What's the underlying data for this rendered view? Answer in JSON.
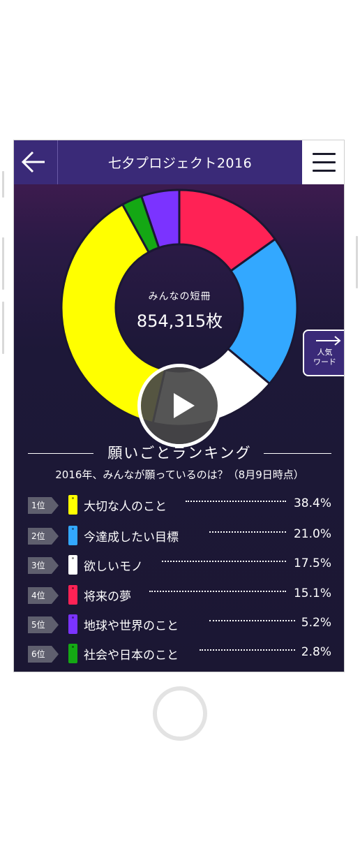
{
  "header": {
    "title": "七夕プロジェクト2016",
    "back_icon": "arrow-left-icon",
    "menu_icon": "hamburger-menu-icon"
  },
  "summary": {
    "label": "みんなの短冊",
    "total": "854,315枚"
  },
  "popular_words": {
    "label_line1": "人気",
    "label_line2": "ワード",
    "icon": "arrow-right-icon"
  },
  "ranking": {
    "title": "願いごとランキング",
    "subtitle": "2016年、みんなが願っているのは？（8月9日時点）",
    "items": [
      {
        "rank": "1位",
        "label": "大切な人のこと",
        "value": "38.4%",
        "color": "#ffff00"
      },
      {
        "rank": "2位",
        "label": "今達成したい目標",
        "value": "21.0%",
        "color": "#33a8ff"
      },
      {
        "rank": "3位",
        "label": "欲しいモノ",
        "value": "17.5%",
        "color": "#ffffff"
      },
      {
        "rank": "4位",
        "label": "将来の夢",
        "value": "15.1%",
        "color": "#ff2255"
      },
      {
        "rank": "5位",
        "label": "地球や世界のこと",
        "value": "5.2%",
        "color": "#7b33ff"
      },
      {
        "rank": "6位",
        "label": "社会や日本のこと",
        "value": "2.8%",
        "color": "#14a814"
      }
    ]
  },
  "chart_data": {
    "type": "pie",
    "categories": [
      "大切な人のこと",
      "今達成したい目標",
      "欲しいモノ",
      "将来の夢",
      "地球や世界のこと",
      "社会や日本のこと"
    ],
    "values": [
      38.4,
      21.0,
      17.5,
      15.1,
      5.2,
      2.8
    ],
    "colors": [
      "#ffff00",
      "#33a8ff",
      "#ffffff",
      "#ff2255",
      "#7b33ff",
      "#14a814"
    ],
    "order_clockwise_from_top": [
      "将来の夢",
      "今達成したい目標",
      "欲しいモノ",
      "大切な人のこと",
      "社会や日本のこと",
      "地球や世界のこと"
    ],
    "style": "donut"
  },
  "video": {
    "icon": "play-icon"
  },
  "device": {
    "home_icon": "home-button-icon"
  }
}
